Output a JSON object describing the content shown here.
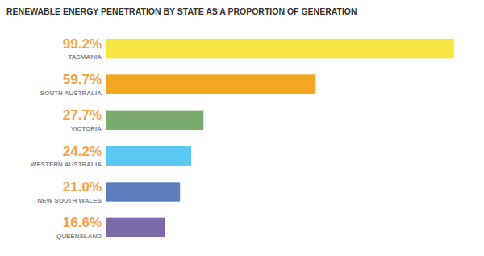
{
  "chart_data": {
    "type": "bar",
    "orientation": "horizontal",
    "title": "RENEWABLE ENERGY PENETRATION BY STATE AS A PROPORTION OF GENERATION",
    "categories": [
      "TASMANIA",
      "SOUTH AUSTRALIA",
      "VICTORIA",
      "WESTERN AUSTRALIA",
      "NEW SOUTH WALES",
      "QUEENSLAND"
    ],
    "values": [
      99.2,
      59.7,
      27.7,
      24.2,
      21.0,
      16.6
    ],
    "value_labels": [
      "99.2%",
      "59.7%",
      "27.7%",
      "24.2%",
      "21.0%",
      "16.6%"
    ],
    "data_labels": true,
    "colors": [
      "#f5e642",
      "#f5a623",
      "#7aaa6e",
      "#5bc8f5",
      "#5b7fbe",
      "#7b6aaa"
    ],
    "xlim": [
      0,
      105
    ],
    "tick_labels": false,
    "grid": false
  }
}
